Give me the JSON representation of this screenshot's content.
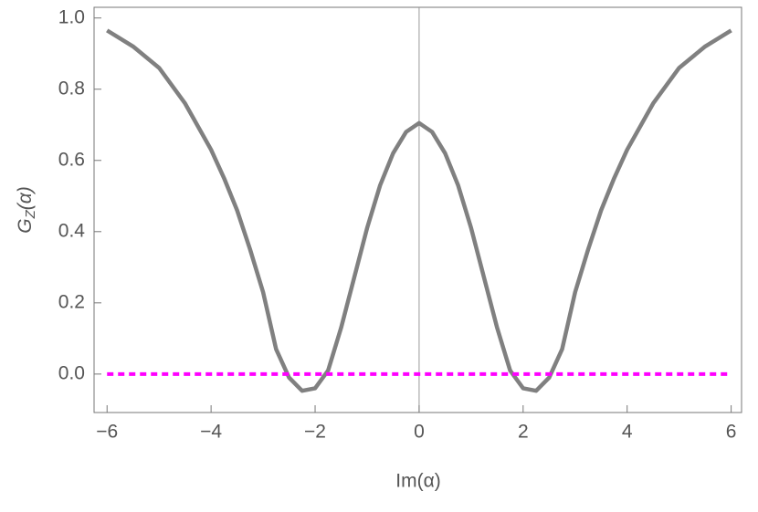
{
  "chart_data": {
    "type": "line",
    "xlabel": "Im(α)",
    "ylabel": [
      "G",
      "Z",
      "(α)"
    ],
    "xlim": [
      -6.25,
      6.2
    ],
    "ylim": [
      -0.108,
      1.03
    ],
    "xticks": [
      {
        "value": -6,
        "label": "−6"
      },
      {
        "value": -4,
        "label": "−4"
      },
      {
        "value": -2,
        "label": "−2"
      },
      0,
      2,
      4,
      6
    ],
    "yticks": [
      {
        "value": 0,
        "label": "0.0"
      },
      0.2,
      0.4,
      0.6,
      0.8,
      {
        "value": 1,
        "label": "1.0"
      }
    ],
    "series": [
      {
        "color": "#808080",
        "dashed": false,
        "x": [
          -6,
          -5.5,
          -5,
          -4.5,
          -4,
          -3.75,
          -3.5,
          -3.25,
          -3,
          -2.75,
          -2.5,
          -2.25,
          -2,
          -1.75,
          -1.5,
          -1.25,
          -1,
          -0.75,
          -0.5,
          -0.25,
          0,
          0.25,
          0.5,
          0.75,
          1,
          1.25,
          1.5,
          1.75,
          2,
          2.25,
          2.5,
          2.75,
          3,
          3.25,
          3.5,
          3.75,
          4,
          4.5,
          5,
          5.5,
          6
        ],
        "values": [
          0.965,
          0.92,
          0.86,
          0.76,
          0.63,
          0.55,
          0.46,
          0.35,
          0.23,
          0.07,
          -0.01,
          -0.047,
          -0.04,
          0.01,
          0.13,
          0.27,
          0.41,
          0.53,
          0.62,
          0.68,
          0.705,
          0.68,
          0.62,
          0.53,
          0.41,
          0.27,
          0.13,
          0.01,
          -0.04,
          -0.047,
          -0.01,
          0.07,
          0.23,
          0.35,
          0.46,
          0.55,
          0.63,
          0.76,
          0.86,
          0.92,
          0.965
        ]
      },
      {
        "color": "#ff00ff",
        "dashed": true,
        "x": [
          -6,
          6
        ],
        "values": [
          0,
          0
        ]
      }
    ]
  }
}
